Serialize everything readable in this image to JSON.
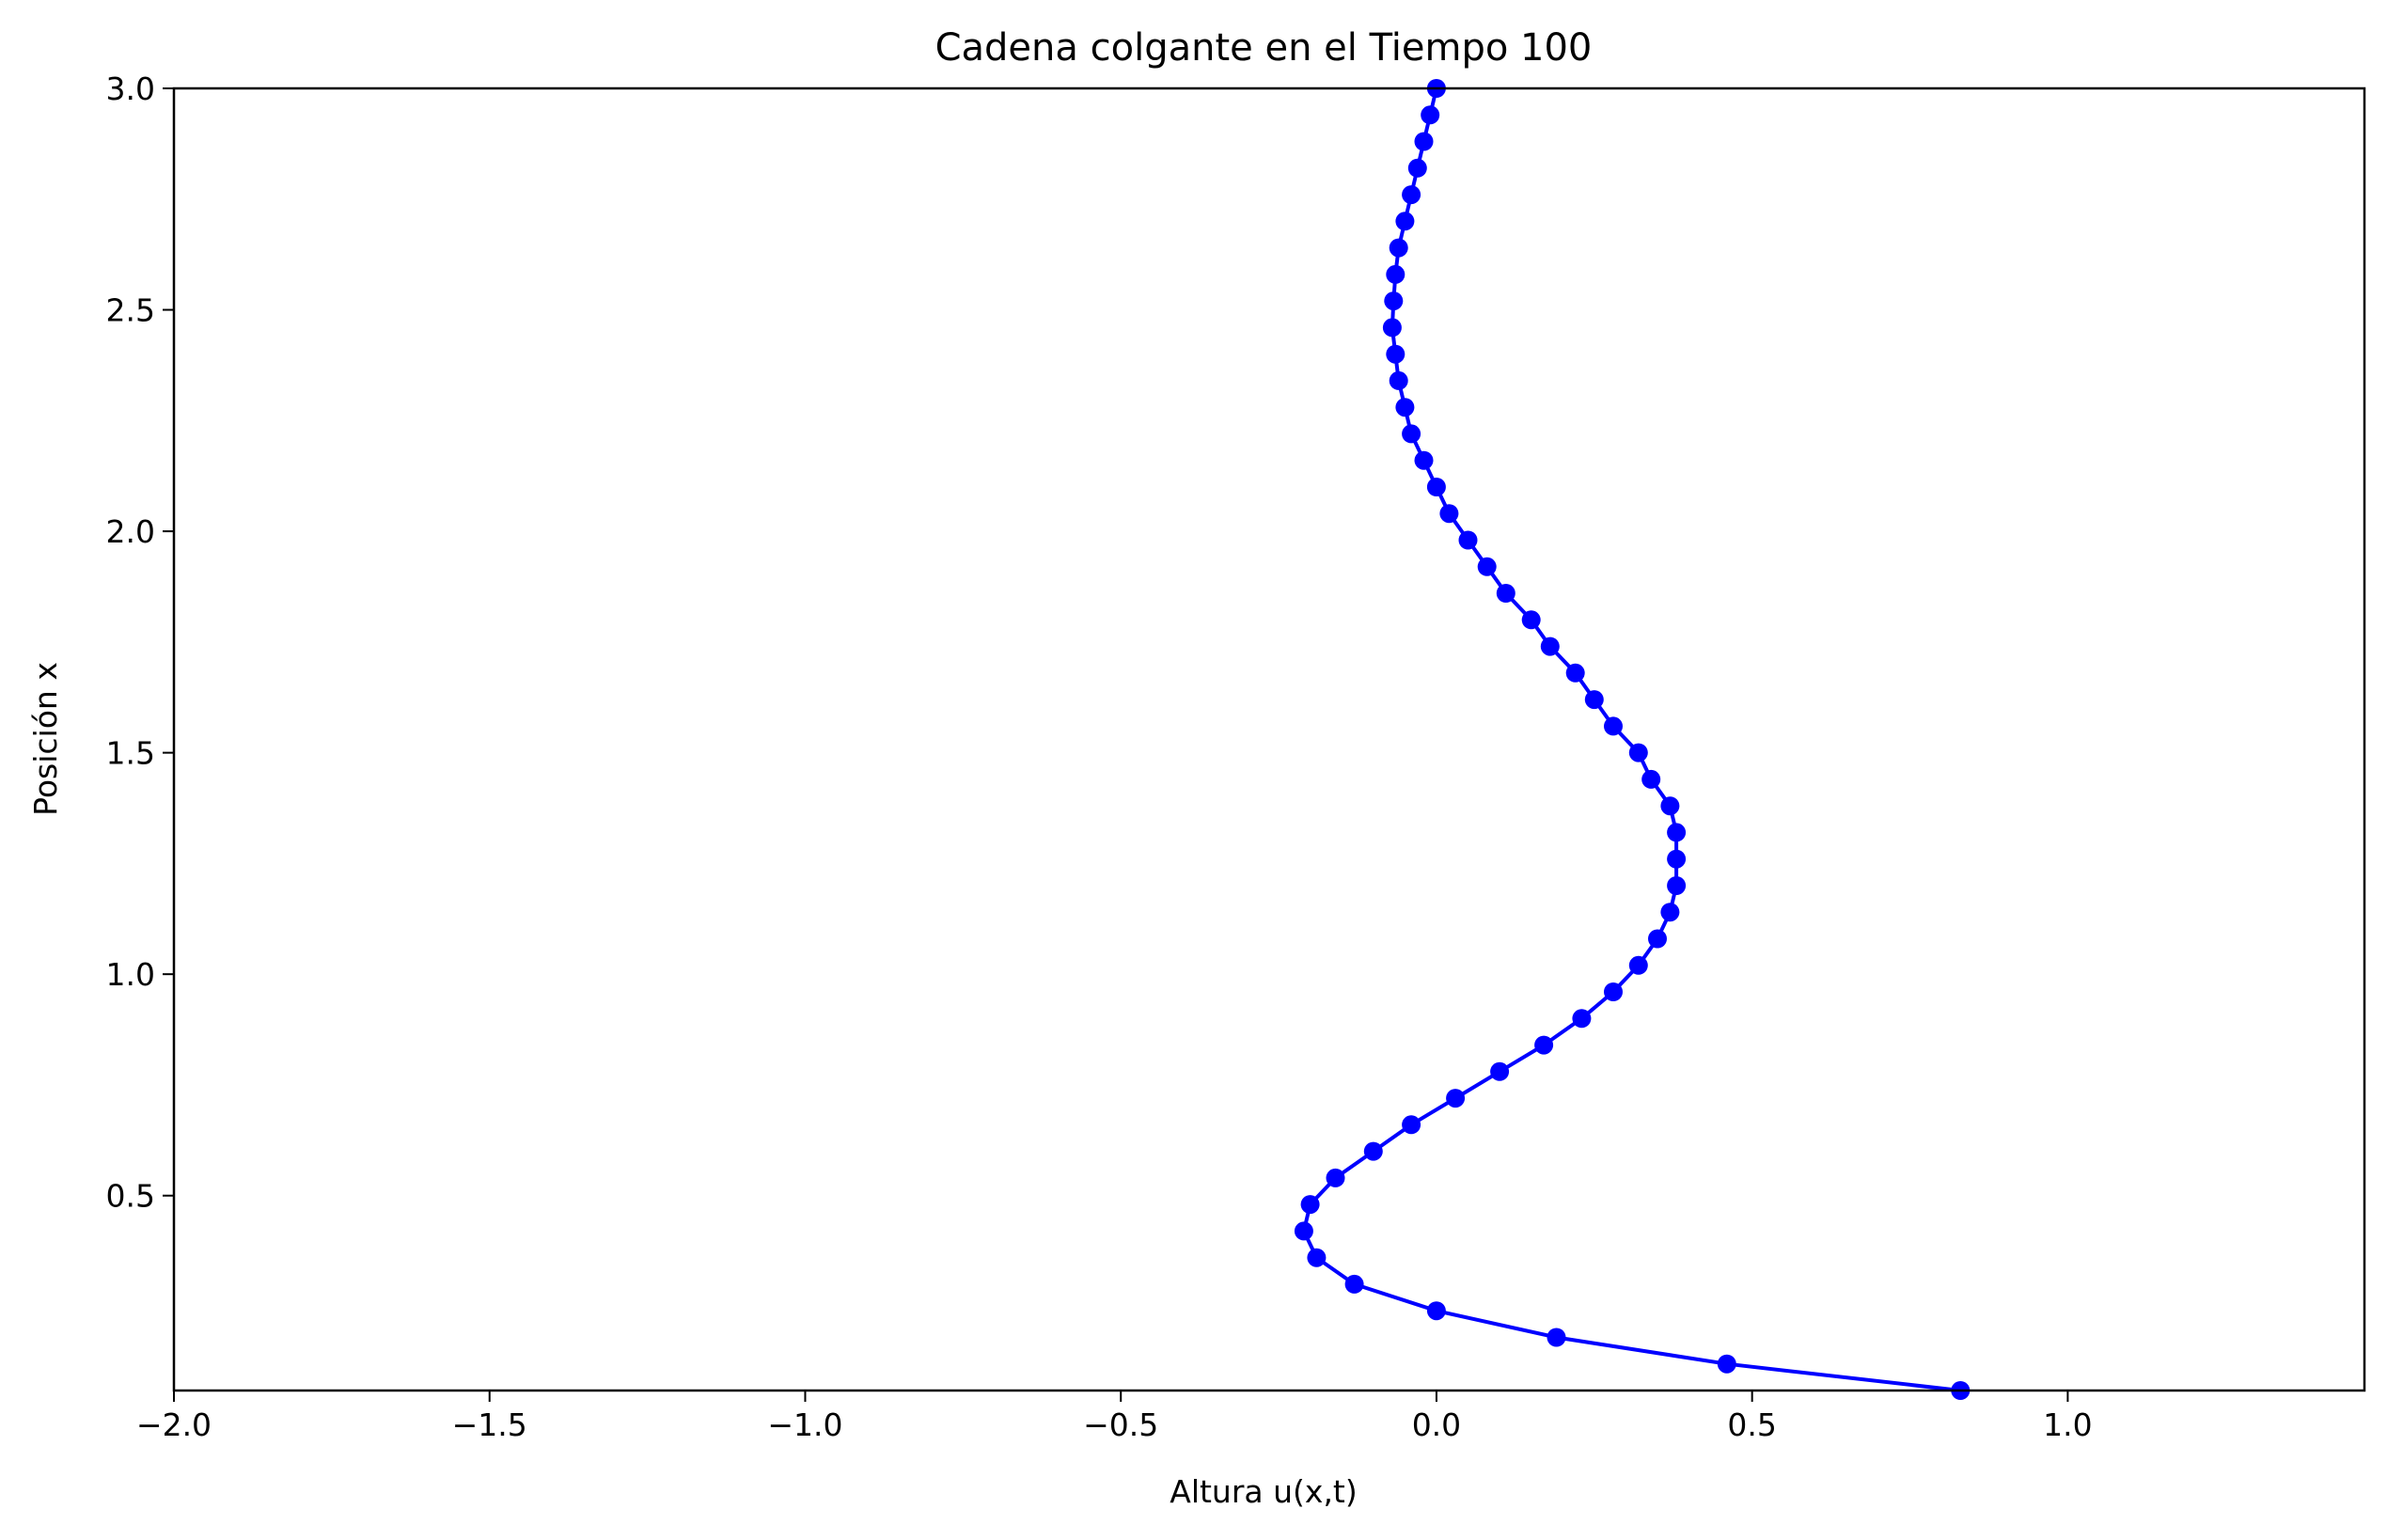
{
  "chart_data": {
    "type": "line",
    "title": "Cadena colgante en el Tiempo 100",
    "xlabel": "Altura u(x,t)",
    "ylabel": "Posición x",
    "xlim": [
      -2.0,
      1.47
    ],
    "ylim": [
      0.06,
      3.0
    ],
    "xticks": [
      -2.0,
      -1.5,
      -1.0,
      -0.5,
      0.0,
      0.5,
      1.0
    ],
    "xtick_labels": [
      "−2.0",
      "−1.5",
      "−1.0",
      "−0.5",
      "0.0",
      "0.5",
      "1.0"
    ],
    "yticks": [
      0.5,
      1.0,
      1.5,
      2.0,
      2.5,
      3.0
    ],
    "ytick_labels": [
      "0.5",
      "1.0",
      "1.5",
      "2.0",
      "2.5",
      "3.0"
    ],
    "grid": false,
    "line_color": "#0000ff",
    "marker": "circle",
    "series": [
      {
        "points": [
          {
            "x": 0.83,
            "y": 0.06
          },
          {
            "x": 0.46,
            "y": 0.12
          },
          {
            "x": 0.19,
            "y": 0.18
          },
          {
            "x": 0.0,
            "y": 0.24
          },
          {
            "x": -0.13,
            "y": 0.3
          },
          {
            "x": -0.19,
            "y": 0.36
          },
          {
            "x": -0.21,
            "y": 0.42
          },
          {
            "x": -0.2,
            "y": 0.48
          },
          {
            "x": -0.16,
            "y": 0.54
          },
          {
            "x": -0.1,
            "y": 0.6
          },
          {
            "x": -0.04,
            "y": 0.66
          },
          {
            "x": 0.03,
            "y": 0.72
          },
          {
            "x": 0.1,
            "y": 0.78
          },
          {
            "x": 0.17,
            "y": 0.84
          },
          {
            "x": 0.23,
            "y": 0.9
          },
          {
            "x": 0.28,
            "y": 0.96
          },
          {
            "x": 0.32,
            "y": 1.02
          },
          {
            "x": 0.35,
            "y": 1.08
          },
          {
            "x": 0.37,
            "y": 1.14
          },
          {
            "x": 0.38,
            "y": 1.2
          },
          {
            "x": 0.38,
            "y": 1.26
          },
          {
            "x": 0.38,
            "y": 1.32
          },
          {
            "x": 0.37,
            "y": 1.38
          },
          {
            "x": 0.34,
            "y": 1.44
          },
          {
            "x": 0.32,
            "y": 1.5
          },
          {
            "x": 0.28,
            "y": 1.56
          },
          {
            "x": 0.25,
            "y": 1.62
          },
          {
            "x": 0.22,
            "y": 1.68
          },
          {
            "x": 0.18,
            "y": 1.74
          },
          {
            "x": 0.15,
            "y": 1.8
          },
          {
            "x": 0.11,
            "y": 1.86
          },
          {
            "x": 0.08,
            "y": 1.92
          },
          {
            "x": 0.05,
            "y": 1.98
          },
          {
            "x": 0.02,
            "y": 2.04
          },
          {
            "x": 0.0,
            "y": 2.1
          },
          {
            "x": -0.02,
            "y": 2.16
          },
          {
            "x": -0.04,
            "y": 2.22
          },
          {
            "x": -0.05,
            "y": 2.28
          },
          {
            "x": -0.06,
            "y": 2.34
          },
          {
            "x": -0.065,
            "y": 2.4
          },
          {
            "x": -0.07,
            "y": 2.46
          },
          {
            "x": -0.068,
            "y": 2.52
          },
          {
            "x": -0.065,
            "y": 2.58
          },
          {
            "x": -0.06,
            "y": 2.64
          },
          {
            "x": -0.05,
            "y": 2.7
          },
          {
            "x": -0.04,
            "y": 2.76
          },
          {
            "x": -0.03,
            "y": 2.82
          },
          {
            "x": -0.02,
            "y": 2.88
          },
          {
            "x": -0.01,
            "y": 2.94
          },
          {
            "x": 0.0,
            "y": 3.0
          }
        ]
      }
    ]
  }
}
